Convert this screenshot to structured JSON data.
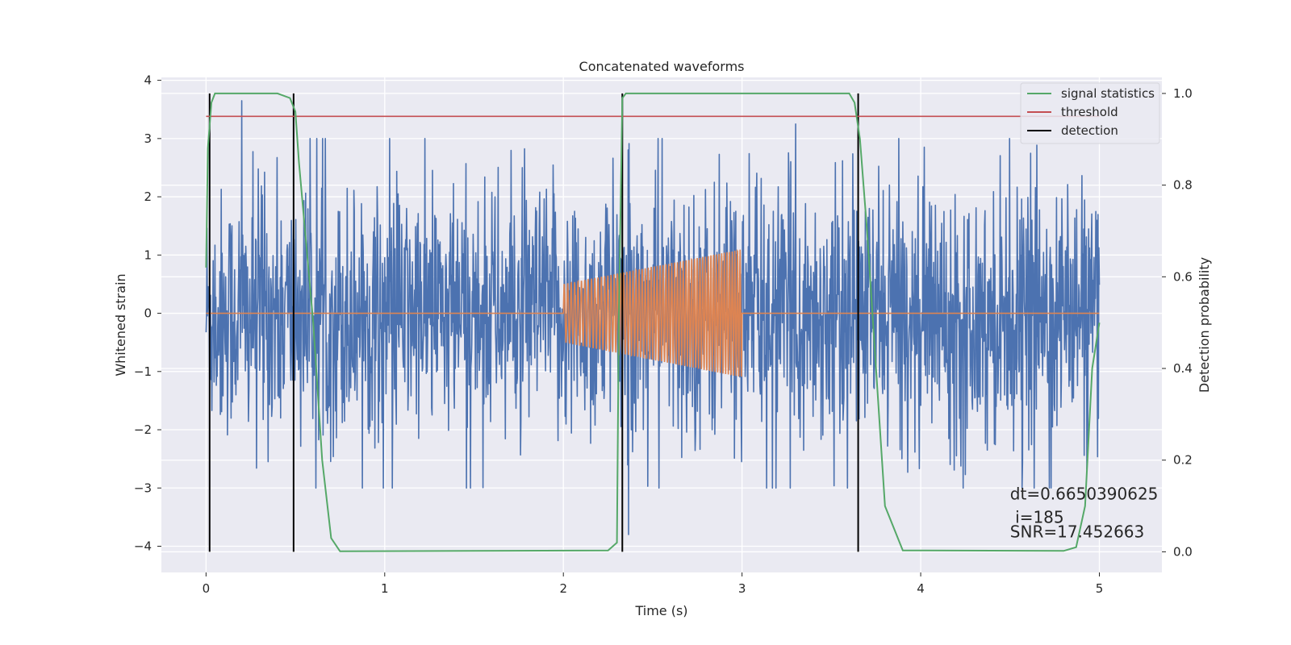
{
  "chart_data": {
    "type": "line",
    "title": "Concatenated waveforms",
    "xlabel": "Time (s)",
    "ylabel": "Whitened strain",
    "y2label": "Detection probability",
    "xlim": [
      -0.25,
      5.35
    ],
    "ylim": [
      -4.45,
      4.05
    ],
    "y2lim": [
      -0.045,
      1.035
    ],
    "xticks": [
      0,
      1,
      2,
      3,
      4,
      5
    ],
    "yticks": [
      -4,
      -3,
      -2,
      -1,
      0,
      1,
      2,
      3,
      4
    ],
    "y2ticks": [
      0.0,
      0.2,
      0.4,
      0.6,
      0.8,
      1.0
    ],
    "y2tick_labels": [
      "0.0",
      "0.2",
      "0.4",
      "0.6",
      "0.8",
      "1.0"
    ],
    "grid": true,
    "legend_position": "top-right",
    "colors": {
      "strain": "#4c72b0",
      "injection": "#dd8452",
      "signal": "#55a868",
      "threshold": "#c44e52",
      "detection": "#000000",
      "background": "#eaeaf2"
    },
    "series": [
      {
        "name": "",
        "kind": "whitened-strain-noise",
        "x_range": [
          0,
          5
        ],
        "samples": 2000,
        "typical_amplitude": 1.3,
        "extremes": [
          3.65,
          -3.8
        ]
      },
      {
        "name": "",
        "kind": "injected-chirp",
        "x_range": [
          2.0,
          3.0
        ],
        "cycles": 60,
        "amplitude_start": 0.5,
        "amplitude_end": 1.1,
        "outside_value": 0
      },
      {
        "name": "signal statistics",
        "axis": "right",
        "x": [
          0.0,
          0.01,
          0.03,
          0.05,
          0.1,
          0.4,
          0.47,
          0.5,
          0.52,
          0.6,
          0.65,
          0.7,
          0.75,
          1.5,
          2.25,
          2.3,
          2.31,
          2.33,
          2.35,
          3.6,
          3.63,
          3.66,
          3.7,
          3.8,
          3.9,
          4.8,
          4.87,
          4.92,
          4.96,
          5.0
        ],
        "y": [
          0.62,
          0.88,
          0.98,
          1.0,
          1.0,
          1.0,
          0.99,
          0.96,
          0.85,
          0.5,
          0.2,
          0.03,
          0.001,
          0.002,
          0.003,
          0.02,
          0.5,
          0.99,
          1.0,
          1.0,
          0.98,
          0.9,
          0.7,
          0.1,
          0.003,
          0.002,
          0.01,
          0.1,
          0.4,
          0.5
        ]
      },
      {
        "name": "threshold",
        "axis": "right",
        "x": [
          0.0,
          5.0
        ],
        "y": [
          0.95,
          0.95
        ]
      },
      {
        "name": "detection",
        "vlines": [
          0.02,
          0.49,
          2.33,
          3.65
        ],
        "axis_range": [
          0,
          1
        ]
      }
    ],
    "legend": [
      {
        "label": "signal statistics",
        "color": "#55a868"
      },
      {
        "label": "threshold",
        "color": "#c44e52"
      },
      {
        "label": "detection",
        "color": "#000000"
      }
    ],
    "annotations": [
      {
        "text": "dt=0.6650390625",
        "x": 4.5,
        "y": -3.2
      },
      {
        "text": " i=185",
        "x": 4.5,
        "y": -3.6
      },
      {
        "text": "SNR=17.452663",
        "x": 4.5,
        "y": -3.85
      }
    ]
  }
}
